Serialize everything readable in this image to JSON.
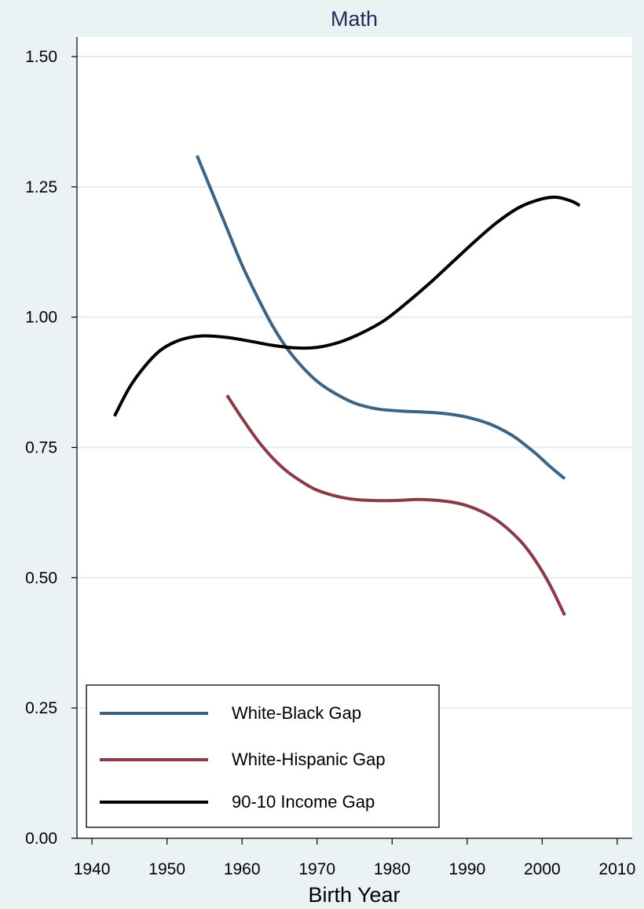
{
  "chart_data": {
    "type": "line",
    "title": "Math",
    "xlabel": "Birth Year",
    "ylabel": "",
    "xlim": [
      1938,
      2012
    ],
    "ylim": [
      0,
      1.55
    ],
    "xticks": [
      1940,
      1950,
      1960,
      1970,
      1980,
      1990,
      2000,
      2010
    ],
    "yticks": [
      0.0,
      0.25,
      0.5,
      0.75,
      1.0,
      1.25,
      1.5
    ],
    "xtick_labels": [
      "1940",
      "1950",
      "1960",
      "1970",
      "1980",
      "1990",
      "2000",
      "2010"
    ],
    "ytick_labels": [
      "0.00",
      "0.25",
      "0.50",
      "0.75",
      "1.00",
      "1.25",
      "1.50"
    ],
    "grid": true,
    "legend_position": "bottom-left",
    "series": [
      {
        "name": "White-Black Gap",
        "color": "#3d6484",
        "x": [
          1954,
          1956,
          1958,
          1960,
          1962,
          1964,
          1966,
          1968,
          1970,
          1972,
          1975,
          1978,
          1981,
          1984,
          1987,
          1990,
          1993,
          1996,
          1999,
          2001,
          2003
        ],
        "y": [
          1.31,
          1.24,
          1.17,
          1.1,
          1.04,
          0.985,
          0.94,
          0.905,
          0.877,
          0.857,
          0.835,
          0.824,
          0.82,
          0.818,
          0.815,
          0.808,
          0.795,
          0.773,
          0.74,
          0.714,
          0.69
        ]
      },
      {
        "name": "White-Hispanic Gap",
        "color": "#8b3a47",
        "x": [
          1958,
          1960,
          1962,
          1964,
          1966,
          1968,
          1970,
          1973,
          1976,
          1980,
          1984,
          1988,
          1991,
          1994,
          1997,
          1999,
          2001,
          2003
        ],
        "y": [
          0.85,
          0.806,
          0.765,
          0.731,
          0.704,
          0.684,
          0.668,
          0.655,
          0.649,
          0.648,
          0.65,
          0.645,
          0.633,
          0.61,
          0.572,
          0.535,
          0.487,
          0.428
        ]
      },
      {
        "name": "90-10 Income Gap",
        "color": "#000000",
        "x": [
          1943,
          1945,
          1947,
          1949,
          1951,
          1953,
          1955,
          1958,
          1961,
          1964,
          1967,
          1970,
          1973,
          1976,
          1979,
          1982,
          1985,
          1988,
          1991,
          1994,
          1997,
          2000,
          2002,
          2004,
          2005
        ],
        "y": [
          0.81,
          0.865,
          0.905,
          0.935,
          0.952,
          0.961,
          0.964,
          0.961,
          0.954,
          0.946,
          0.941,
          0.942,
          0.952,
          0.97,
          0.994,
          1.028,
          1.065,
          1.105,
          1.145,
          1.182,
          1.211,
          1.227,
          1.23,
          1.222,
          1.214
        ]
      }
    ]
  }
}
